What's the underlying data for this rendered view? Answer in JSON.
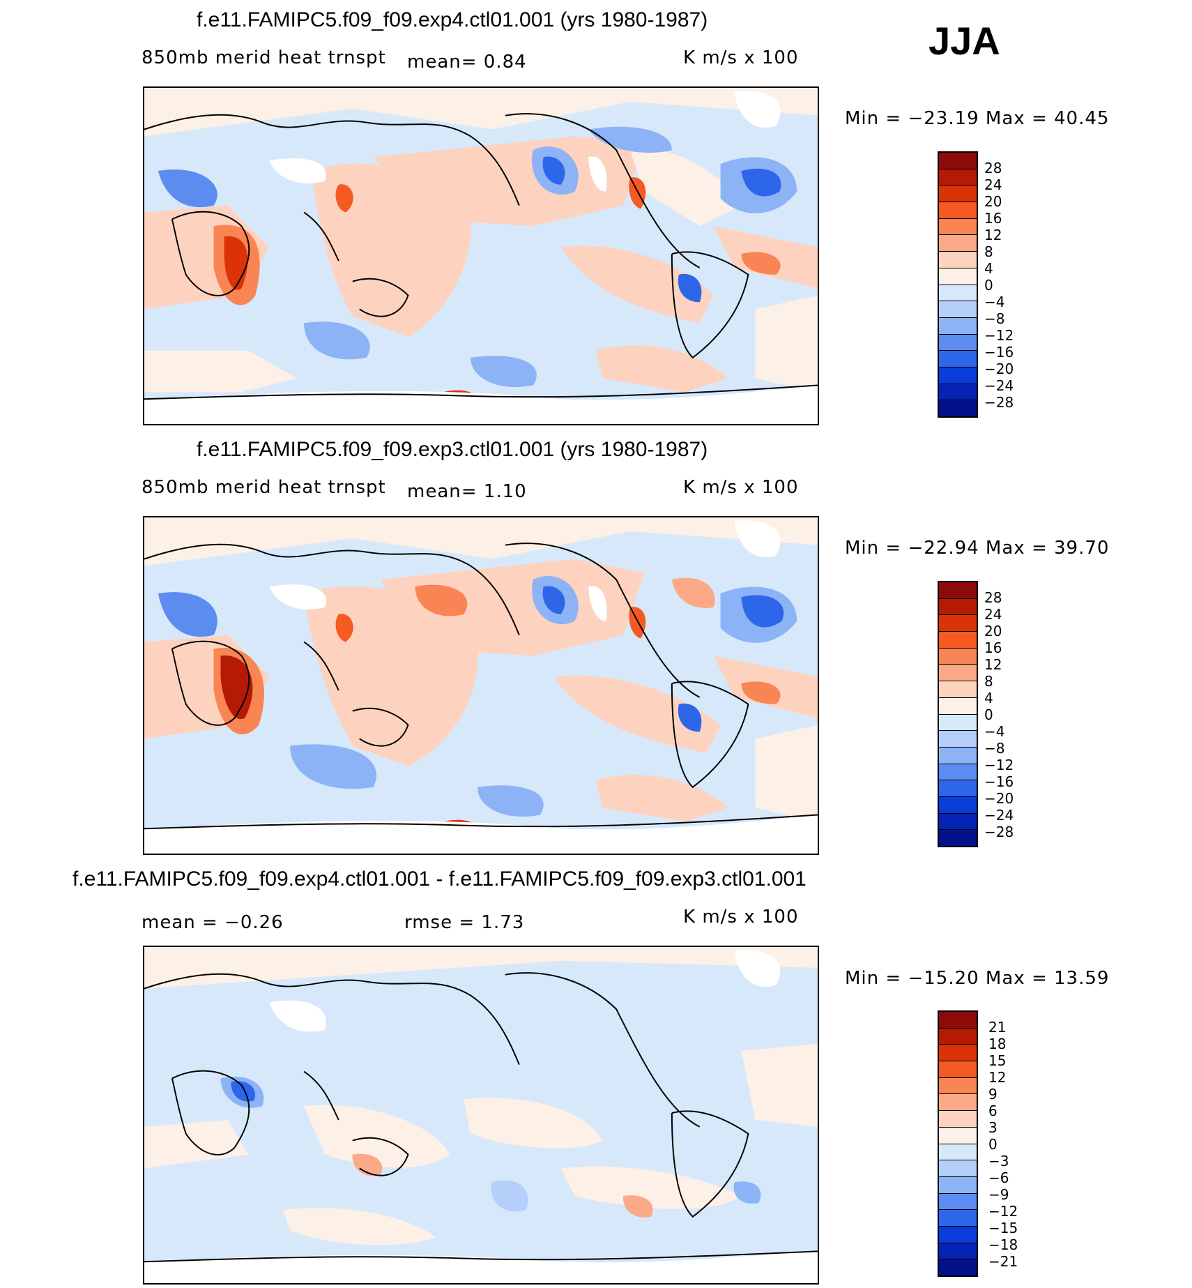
{
  "season": "JJA",
  "palette_14": [
    "#8c0a0a",
    "#b51a05",
    "#dc3207",
    "#f55a22",
    "#f98454",
    "#fba987",
    "#fdd3bf",
    "#fdf0e6",
    "#d7e8fb",
    "#b3cffa",
    "#8cb3f5",
    "#5c8cf0",
    "#2e66ea",
    "#0a3cd9",
    "#0523b4",
    "#03118a"
  ],
  "panels": [
    {
      "title": "f.e11.FAMIPC5.f09_f09.exp4.ctl01.001 (yrs 1980-1987)",
      "left_label": "850mb merid heat trnspt",
      "stat1": "mean=     0.84",
      "stat2": "",
      "units": "K m/s x 100",
      "minmax": "Min = −23.19 Max =   40.45",
      "cbar_labels": [
        "28",
        "24",
        "20",
        "16",
        "12",
        "8",
        "4",
        "0",
        "−4",
        "−8",
        "−12",
        "−16",
        "−20",
        "−24",
        "−28"
      ]
    },
    {
      "title": "f.e11.FAMIPC5.f09_f09.exp3.ctl01.001 (yrs 1980-1987)",
      "left_label": "850mb merid heat trnspt",
      "stat1": "mean=     1.10",
      "stat2": "",
      "units": "K m/s x 100",
      "minmax": "Min = −22.94 Max =   39.70",
      "cbar_labels": [
        "28",
        "24",
        "20",
        "16",
        "12",
        "8",
        "4",
        "0",
        "−4",
        "−8",
        "−12",
        "−16",
        "−20",
        "−24",
        "−28"
      ]
    },
    {
      "title": "f.e11.FAMIPC5.f09_f09.exp4.ctl01.001 - f.e11.FAMIPC5.f09_f09.exp3.ctl01.001",
      "left_label": "mean =   −0.26",
      "stat1": "rmse =    1.73",
      "stat2": "",
      "units": "K m/s x 100",
      "minmax": "Min = −15.20 Max =   13.59",
      "cbar_labels": [
        "21",
        "18",
        "15",
        "12",
        "9",
        "6",
        "3",
        "0",
        "−3",
        "−6",
        "−9",
        "−12",
        "−15",
        "−18",
        "−21"
      ]
    }
  ]
}
